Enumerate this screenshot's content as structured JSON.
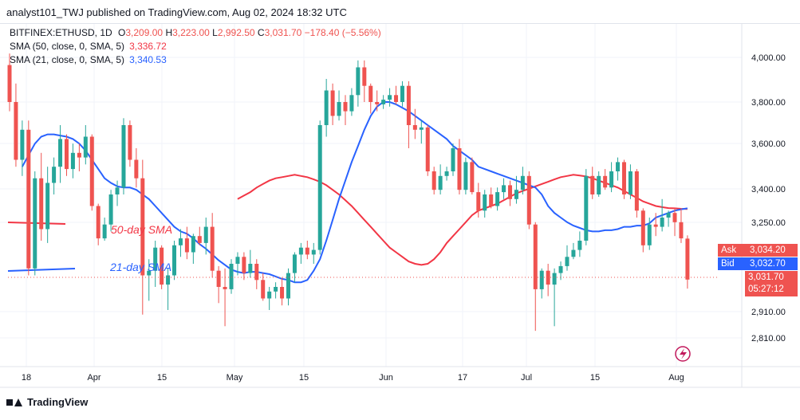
{
  "publisher": "analyst101_TWJ published on TradingView.com, Aug 02, 2024 18:32 UTC",
  "legend": {
    "symbol_line": "BITFINEX:ETHUSD, 1D",
    "o_label": "O",
    "o": "3,209.00",
    "h_label": "H",
    "h": "3,223.00",
    "l_label": "L",
    "l": "2,992.50",
    "c_label": "C",
    "c": "3,031.70",
    "change": "−178.40 (−5.56%)",
    "sma50_label": "SMA (50, close, 0, SMA, 5)",
    "sma50_value": "3,336.72",
    "sma21_label": "SMA (21, close, 0, SMA, 5)",
    "sma21_value": "3,340.53"
  },
  "annotations": {
    "sma50": "50-day SMA",
    "sma21": "21-day SMA"
  },
  "price_tags": {
    "ask_label": "Ask",
    "ask": "3,034.20",
    "bid_label": "Bid",
    "bid": "3,032.70",
    "last": "3,031.70",
    "countdown": "05:27:12"
  },
  "branding": "TradingView",
  "colors": {
    "up": "#26a69a",
    "down": "#ef5350",
    "sma50": "#f23645",
    "sma21": "#2962ff",
    "text": "#131722"
  },
  "chart_data": {
    "type": "candlestick",
    "symbol": "BITFINEX:ETHUSD",
    "interval": "1D",
    "y_axis_ticks": [
      "4,000.00",
      "3,800.00",
      "3,600.00",
      "3,400.00",
      "3,250.00",
      "2,910.00",
      "2,810.00"
    ],
    "x_axis_ticks": [
      "18",
      "Apr",
      "15",
      "May",
      "15",
      "Jun",
      "17",
      "Jul",
      "15",
      "Aug"
    ],
    "candles": [
      {
        "o": 3960,
        "h": 4010,
        "l": 3760,
        "c": 3800
      },
      {
        "o": 3800,
        "h": 3880,
        "l": 3520,
        "c": 3550
      },
      {
        "o": 3550,
        "h": 3720,
        "l": 3480,
        "c": 3680
      },
      {
        "o": 3680,
        "h": 3720,
        "l": 3050,
        "c": 3080
      },
      {
        "o": 3080,
        "h": 3500,
        "l": 3050,
        "c": 3470
      },
      {
        "o": 3470,
        "h": 3580,
        "l": 3200,
        "c": 3250
      },
      {
        "o": 3250,
        "h": 3520,
        "l": 3190,
        "c": 3450
      },
      {
        "o": 3450,
        "h": 3560,
        "l": 3400,
        "c": 3520
      },
      {
        "o": 3520,
        "h": 3700,
        "l": 3450,
        "c": 3640
      },
      {
        "o": 3640,
        "h": 3660,
        "l": 3480,
        "c": 3510
      },
      {
        "o": 3510,
        "h": 3620,
        "l": 3470,
        "c": 3580
      },
      {
        "o": 3580,
        "h": 3620,
        "l": 3500,
        "c": 3560
      },
      {
        "o": 3560,
        "h": 3700,
        "l": 3530,
        "c": 3650
      },
      {
        "o": 3650,
        "h": 3660,
        "l": 3330,
        "c": 3350
      },
      {
        "o": 3350,
        "h": 3360,
        "l": 3180,
        "c": 3210
      },
      {
        "o": 3210,
        "h": 3300,
        "l": 3200,
        "c": 3270
      },
      {
        "o": 3270,
        "h": 3420,
        "l": 3240,
        "c": 3400
      },
      {
        "o": 3400,
        "h": 3460,
        "l": 3350,
        "c": 3430
      },
      {
        "o": 3430,
        "h": 3730,
        "l": 3400,
        "c": 3700
      },
      {
        "o": 3700,
        "h": 3720,
        "l": 3520,
        "c": 3550
      },
      {
        "o": 3550,
        "h": 3600,
        "l": 3430,
        "c": 3470
      },
      {
        "o": 3470,
        "h": 3550,
        "l": 2880,
        "c": 3050
      },
      {
        "o": 3050,
        "h": 3120,
        "l": 2940,
        "c": 3070
      },
      {
        "o": 3070,
        "h": 3200,
        "l": 3000,
        "c": 3170
      },
      {
        "o": 3170,
        "h": 3180,
        "l": 2990,
        "c": 3010
      },
      {
        "o": 3010,
        "h": 3080,
        "l": 2900,
        "c": 3050
      },
      {
        "o": 3050,
        "h": 3200,
        "l": 3030,
        "c": 3180
      },
      {
        "o": 3180,
        "h": 3250,
        "l": 3130,
        "c": 3210
      },
      {
        "o": 3210,
        "h": 3260,
        "l": 3120,
        "c": 3150
      },
      {
        "o": 3150,
        "h": 3230,
        "l": 3100,
        "c": 3220
      },
      {
        "o": 3220,
        "h": 3260,
        "l": 3180,
        "c": 3190
      },
      {
        "o": 3190,
        "h": 3300,
        "l": 3140,
        "c": 3260
      },
      {
        "o": 3260,
        "h": 3320,
        "l": 3040,
        "c": 3070
      },
      {
        "o": 3070,
        "h": 3090,
        "l": 2930,
        "c": 3000
      },
      {
        "o": 3000,
        "h": 3080,
        "l": 2830,
        "c": 2990
      },
      {
        "o": 2990,
        "h": 3120,
        "l": 2970,
        "c": 3100
      },
      {
        "o": 3100,
        "h": 3150,
        "l": 3050,
        "c": 3130
      },
      {
        "o": 3130,
        "h": 3150,
        "l": 3030,
        "c": 3060
      },
      {
        "o": 3060,
        "h": 3160,
        "l": 3040,
        "c": 3100
      },
      {
        "o": 3100,
        "h": 3120,
        "l": 2990,
        "c": 3030
      },
      {
        "o": 3030,
        "h": 3060,
        "l": 2940,
        "c": 2950
      },
      {
        "o": 2950,
        "h": 3000,
        "l": 2900,
        "c": 2980
      },
      {
        "o": 2980,
        "h": 3020,
        "l": 2950,
        "c": 3000
      },
      {
        "o": 3000,
        "h": 3040,
        "l": 2920,
        "c": 2950
      },
      {
        "o": 2950,
        "h": 3080,
        "l": 2920,
        "c": 3060
      },
      {
        "o": 3060,
        "h": 3150,
        "l": 3020,
        "c": 3140
      },
      {
        "o": 3140,
        "h": 3190,
        "l": 3100,
        "c": 3170
      },
      {
        "o": 3170,
        "h": 3200,
        "l": 3120,
        "c": 3140
      },
      {
        "o": 3140,
        "h": 3190,
        "l": 3100,
        "c": 3160
      },
      {
        "o": 3160,
        "h": 3720,
        "l": 3140,
        "c": 3700
      },
      {
        "o": 3700,
        "h": 3900,
        "l": 3650,
        "c": 3850
      },
      {
        "o": 3850,
        "h": 3880,
        "l": 3700,
        "c": 3740
      },
      {
        "o": 3740,
        "h": 3850,
        "l": 3720,
        "c": 3800
      },
      {
        "o": 3800,
        "h": 3830,
        "l": 3700,
        "c": 3760
      },
      {
        "o": 3760,
        "h": 3860,
        "l": 3740,
        "c": 3830
      },
      {
        "o": 3830,
        "h": 3980,
        "l": 3780,
        "c": 3950
      },
      {
        "o": 3950,
        "h": 3980,
        "l": 3800,
        "c": 3870
      },
      {
        "o": 3870,
        "h": 3880,
        "l": 3750,
        "c": 3800
      },
      {
        "o": 3800,
        "h": 3850,
        "l": 3760,
        "c": 3790
      },
      {
        "o": 3790,
        "h": 3830,
        "l": 3770,
        "c": 3810
      },
      {
        "o": 3810,
        "h": 3860,
        "l": 3780,
        "c": 3830
      },
      {
        "o": 3830,
        "h": 3870,
        "l": 3790,
        "c": 3800
      },
      {
        "o": 3800,
        "h": 3890,
        "l": 3780,
        "c": 3870
      },
      {
        "o": 3870,
        "h": 3890,
        "l": 3600,
        "c": 3700
      },
      {
        "o": 3700,
        "h": 3770,
        "l": 3640,
        "c": 3680
      },
      {
        "o": 3680,
        "h": 3720,
        "l": 3620,
        "c": 3690
      },
      {
        "o": 3690,
        "h": 3700,
        "l": 3480,
        "c": 3500
      },
      {
        "o": 3500,
        "h": 3520,
        "l": 3400,
        "c": 3420
      },
      {
        "o": 3420,
        "h": 3530,
        "l": 3400,
        "c": 3480
      },
      {
        "o": 3480,
        "h": 3520,
        "l": 3460,
        "c": 3500
      },
      {
        "o": 3500,
        "h": 3620,
        "l": 3480,
        "c": 3600
      },
      {
        "o": 3600,
        "h": 3640,
        "l": 3400,
        "c": 3420
      },
      {
        "o": 3420,
        "h": 3560,
        "l": 3400,
        "c": 3540
      },
      {
        "o": 3540,
        "h": 3560,
        "l": 3400,
        "c": 3410
      },
      {
        "o": 3410,
        "h": 3450,
        "l": 3300,
        "c": 3330
      },
      {
        "o": 3330,
        "h": 3420,
        "l": 3300,
        "c": 3400
      },
      {
        "o": 3400,
        "h": 3430,
        "l": 3340,
        "c": 3350
      },
      {
        "o": 3350,
        "h": 3430,
        "l": 3330,
        "c": 3410
      },
      {
        "o": 3410,
        "h": 3470,
        "l": 3380,
        "c": 3440
      },
      {
        "o": 3440,
        "h": 3460,
        "l": 3350,
        "c": 3380
      },
      {
        "o": 3380,
        "h": 3480,
        "l": 3360,
        "c": 3420
      },
      {
        "o": 3420,
        "h": 3520,
        "l": 3400,
        "c": 3480
      },
      {
        "o": 3480,
        "h": 3500,
        "l": 3250,
        "c": 3270
      },
      {
        "o": 3270,
        "h": 3280,
        "l": 2810,
        "c": 2990
      },
      {
        "o": 2990,
        "h": 3080,
        "l": 2950,
        "c": 3070
      },
      {
        "o": 3070,
        "h": 3100,
        "l": 2960,
        "c": 3010
      },
      {
        "o": 3010,
        "h": 3080,
        "l": 2830,
        "c": 3060
      },
      {
        "o": 3060,
        "h": 3110,
        "l": 3030,
        "c": 3090
      },
      {
        "o": 3090,
        "h": 3180,
        "l": 3070,
        "c": 3130
      },
      {
        "o": 3130,
        "h": 3190,
        "l": 3120,
        "c": 3160
      },
      {
        "o": 3160,
        "h": 3240,
        "l": 3130,
        "c": 3200
      },
      {
        "o": 3200,
        "h": 3510,
        "l": 3180,
        "c": 3480
      },
      {
        "o": 3480,
        "h": 3520,
        "l": 3380,
        "c": 3400
      },
      {
        "o": 3400,
        "h": 3500,
        "l": 3390,
        "c": 3480
      },
      {
        "o": 3480,
        "h": 3510,
        "l": 3420,
        "c": 3430
      },
      {
        "o": 3430,
        "h": 3540,
        "l": 3410,
        "c": 3500
      },
      {
        "o": 3500,
        "h": 3560,
        "l": 3460,
        "c": 3540
      },
      {
        "o": 3540,
        "h": 3550,
        "l": 3380,
        "c": 3400
      },
      {
        "o": 3400,
        "h": 3530,
        "l": 3380,
        "c": 3500
      },
      {
        "o": 3500,
        "h": 3510,
        "l": 3300,
        "c": 3330
      },
      {
        "o": 3330,
        "h": 3340,
        "l": 3150,
        "c": 3180
      },
      {
        "o": 3180,
        "h": 3300,
        "l": 3160,
        "c": 3270
      },
      {
        "o": 3270,
        "h": 3320,
        "l": 3220,
        "c": 3260
      },
      {
        "o": 3260,
        "h": 3380,
        "l": 3240,
        "c": 3300
      },
      {
        "o": 3300,
        "h": 3330,
        "l": 3260,
        "c": 3320
      },
      {
        "o": 3320,
        "h": 3340,
        "l": 3220,
        "c": 3280
      },
      {
        "o": 3280,
        "h": 3340,
        "l": 3190,
        "c": 3210
      },
      {
        "o": 3209,
        "h": 3223,
        "l": 2992.5,
        "c": 3031.7
      }
    ],
    "sma21": [
      3520,
      3570,
      3620,
      3650,
      3660,
      3660,
      3655,
      3650,
      3640,
      3620,
      3590,
      3550,
      3510,
      3470,
      3450,
      3435,
      3430,
      3430,
      3420,
      3400,
      3380,
      3350,
      3320,
      3290,
      3260,
      3240,
      3230,
      3210,
      3185,
      3165,
      3140,
      3115,
      3095,
      3075,
      3065,
      3060,
      3065,
      3065,
      3060,
      3055,
      3045,
      3035,
      3030,
      3020,
      3020,
      3030,
      3070,
      3120,
      3200,
      3290,
      3380,
      3460,
      3540,
      3610,
      3680,
      3740,
      3780,
      3800,
      3800,
      3790,
      3775,
      3760,
      3740,
      3720,
      3700,
      3680,
      3660,
      3640,
      3610,
      3590,
      3570,
      3550,
      3520,
      3510,
      3500,
      3490,
      3480,
      3470,
      3460,
      3450,
      3440,
      3430,
      3400,
      3350,
      3320,
      3300,
      3280,
      3265,
      3255,
      3245,
      3240,
      3240,
      3245,
      3245,
      3250,
      3260,
      3260,
      3265,
      3265,
      3275,
      3300,
      3310,
      3320,
      3330,
      3336,
      3340
    ],
    "sma50": [
      3380,
      3395,
      3410,
      3430,
      3445,
      3460,
      3470,
      3475,
      3480,
      3485,
      3480,
      3475,
      3465,
      3455,
      3440,
      3420,
      3400,
      3375,
      3350,
      3320,
      3290,
      3260,
      3230,
      3200,
      3170,
      3150,
      3130,
      3110,
      3100,
      3095,
      3100,
      3120,
      3150,
      3190,
      3220,
      3250,
      3280,
      3310,
      3330,
      3340,
      3350,
      3360,
      3375,
      3390,
      3405,
      3415,
      3425,
      3435,
      3445,
      3455,
      3465,
      3475,
      3480,
      3485,
      3482,
      3478,
      3470,
      3460,
      3450,
      3440,
      3430,
      3415,
      3400,
      3385,
      3370,
      3360,
      3350,
      3345,
      3341,
      3340,
      3338,
      3337
    ]
  }
}
